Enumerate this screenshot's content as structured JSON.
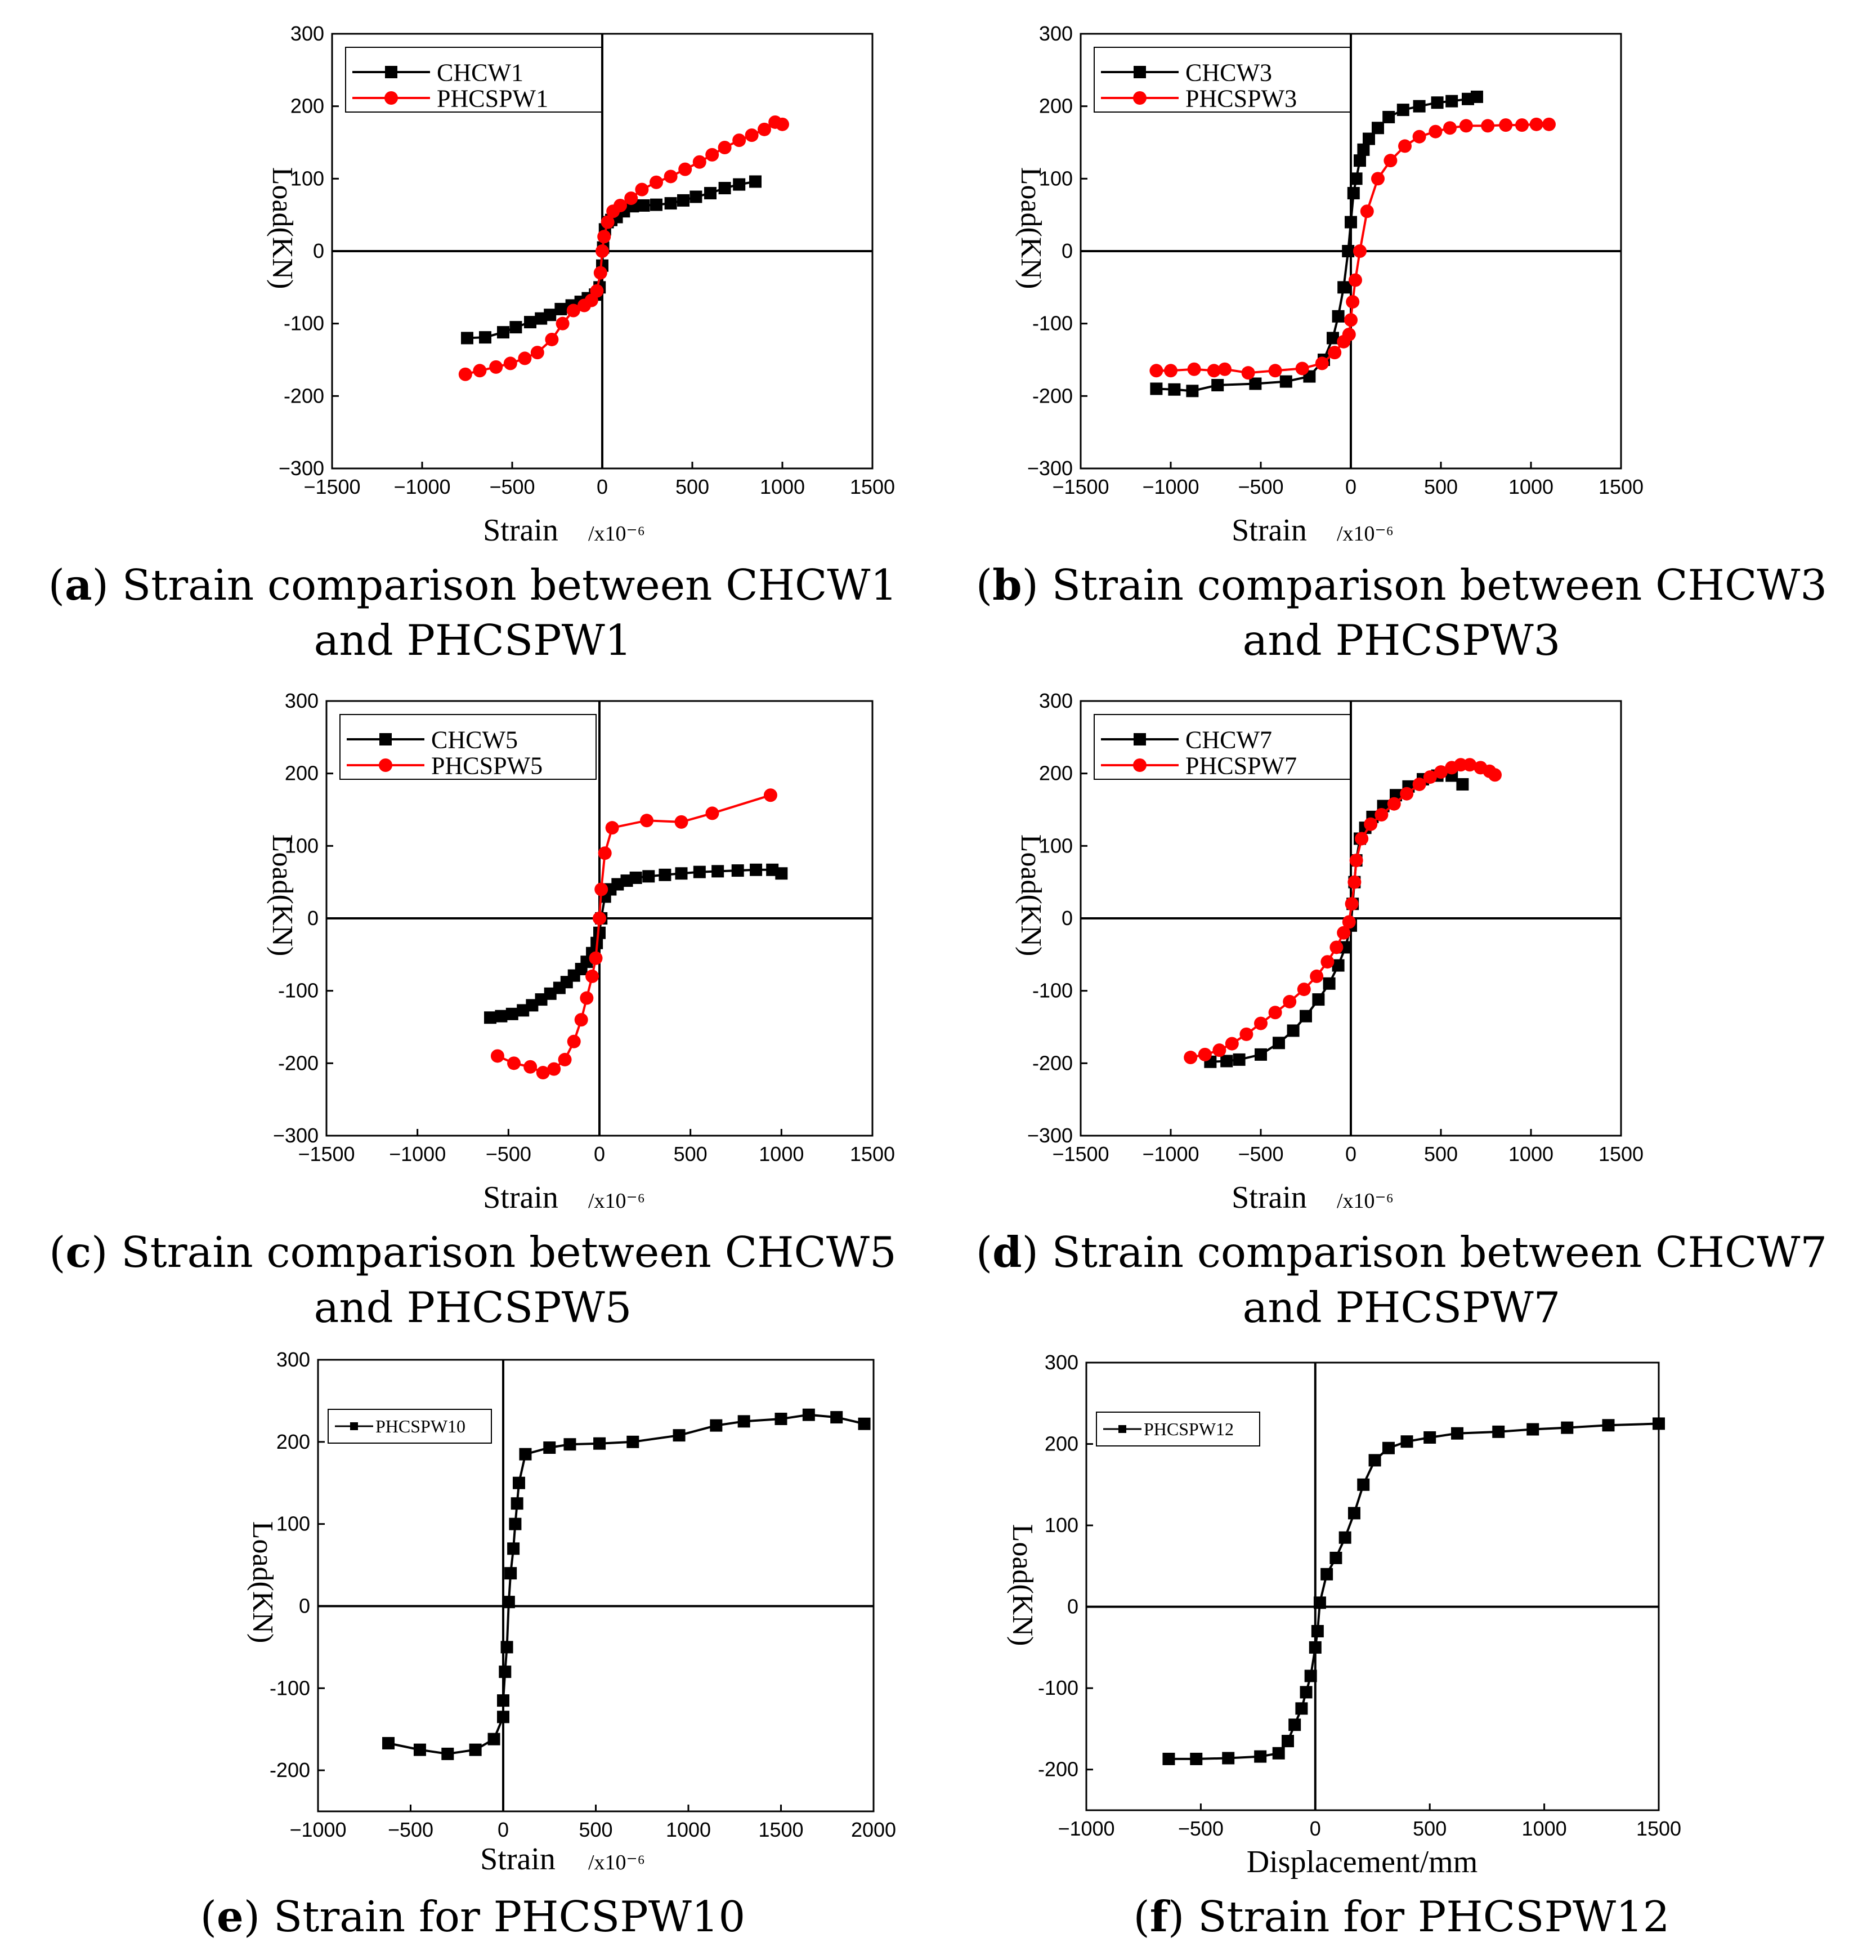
{
  "chart_data": [
    {
      "type": "line",
      "panel": "a",
      "caption_prefix": "(",
      "caption_letter": "a",
      "caption_text": ") Strain comparison between CHCW1 and PHCSPW1",
      "xlabel": "Strain",
      "xunit": "/x10⁻⁶",
      "ylabel": "Load(KN)",
      "xlim": [
        -1500,
        1500
      ],
      "ylim": [
        -300,
        300
      ],
      "xticks": [
        "−1500",
        "−1000",
        "−500",
        "0",
        "500",
        "1000",
        "1500"
      ],
      "yticks": [
        "300",
        "200",
        "100",
        "0",
        "-100",
        "-200",
        "−300"
      ],
      "legend": "top-left",
      "series": [
        {
          "name": "CHCW1",
          "color": "#000000",
          "marker": "square",
          "x": [
            -750,
            -650,
            -550,
            -480,
            -400,
            -340,
            -290,
            -230,
            -170,
            -120,
            -80,
            -40,
            -15,
            0,
            5,
            15,
            30,
            50,
            80,
            120,
            170,
            230,
            300,
            380,
            450,
            520,
            600,
            680,
            760,
            850
          ],
          "y": [
            -120,
            -119,
            -112,
            -105,
            -98,
            -93,
            -88,
            -80,
            -75,
            -70,
            -65,
            -60,
            -50,
            -20,
            5,
            30,
            40,
            43,
            47,
            55,
            62,
            63,
            64,
            66,
            70,
            75,
            80,
            87,
            92,
            96
          ]
        },
        {
          "name": "PHCSPW1",
          "color": "#ff0000",
          "marker": "circle",
          "x": [
            -760,
            -680,
            -590,
            -510,
            -430,
            -360,
            -280,
            -220,
            -160,
            -100,
            -60,
            -30,
            -10,
            0,
            10,
            30,
            60,
            100,
            160,
            220,
            300,
            380,
            460,
            540,
            610,
            680,
            760,
            830,
            900,
            960,
            1000
          ],
          "y": [
            -170,
            -165,
            -160,
            -155,
            -148,
            -140,
            -122,
            -100,
            -82,
            -75,
            -68,
            -55,
            -30,
            0,
            20,
            40,
            55,
            63,
            73,
            85,
            95,
            103,
            113,
            123,
            133,
            143,
            153,
            160,
            168,
            178,
            175
          ]
        }
      ]
    },
    {
      "type": "line",
      "panel": "b",
      "caption_prefix": "(",
      "caption_letter": "b",
      "caption_text": ") Strain comparison between CHCW3 and PHCSPW3",
      "xlabel": "Strain",
      "xunit": "/x10⁻⁶",
      "ylabel": "Load(KN)",
      "xlim": [
        -1500,
        1500
      ],
      "ylim": [
        -300,
        300
      ],
      "xticks": [
        "−1500",
        "−1000",
        "−500",
        "0",
        "500",
        "1000",
        "1500"
      ],
      "yticks": [
        "300",
        "200",
        "100",
        "0",
        "-100",
        "-200",
        "−300"
      ],
      "legend": "top-left",
      "series": [
        {
          "name": "CHCW3",
          "color": "#000000",
          "marker": "square",
          "x": [
            -1080,
            -980,
            -880,
            -740,
            -530,
            -360,
            -230,
            -150,
            -100,
            -70,
            -40,
            -15,
            0,
            15,
            30,
            50,
            70,
            100,
            150,
            210,
            290,
            380,
            480,
            560,
            650,
            700
          ],
          "y": [
            -190,
            -191,
            -193,
            -185,
            -183,
            -180,
            -173,
            -150,
            -120,
            -90,
            -50,
            0,
            40,
            80,
            100,
            125,
            140,
            155,
            170,
            185,
            195,
            200,
            205,
            207,
            210,
            213
          ]
        },
        {
          "name": "PHCSPW3",
          "color": "#ff0000",
          "marker": "circle",
          "x": [
            -1080,
            -1000,
            -870,
            -760,
            -700,
            -570,
            -420,
            -270,
            -160,
            -90,
            -40,
            -10,
            0,
            10,
            25,
            50,
            90,
            150,
            220,
            300,
            380,
            470,
            550,
            640,
            760,
            860,
            950,
            1030,
            1100
          ],
          "y": [
            -165,
            -165,
            -163,
            -165,
            -163,
            -168,
            -165,
            -162,
            -155,
            -140,
            -125,
            -115,
            -95,
            -70,
            -40,
            0,
            55,
            100,
            125,
            145,
            158,
            165,
            170,
            173,
            173,
            174,
            174,
            175,
            175
          ]
        }
      ]
    },
    {
      "type": "line",
      "panel": "c",
      "caption_prefix": "(",
      "caption_letter": "c",
      "caption_text": ") Strain comparison between CHCW5 and PHCSPW5",
      "xlabel": "Strain",
      "xunit": "/x10⁻⁶",
      "ylabel": "Load(KN)",
      "xlim": [
        -1500,
        1500
      ],
      "ylim": [
        -300,
        300
      ],
      "xticks": [
        "−1500",
        "−1000",
        "−500",
        "0",
        "500",
        "1000",
        "1500"
      ],
      "yticks": [
        "300",
        "200",
        "100",
        "0",
        "-100",
        "-200",
        "−300"
      ],
      "legend": "top-left",
      "series": [
        {
          "name": "CHCW5",
          "color": "#000000",
          "marker": "square",
          "x": [
            -600,
            -540,
            -480,
            -420,
            -370,
            -320,
            -270,
            -220,
            -180,
            -140,
            -100,
            -70,
            -40,
            -15,
            0,
            10,
            30,
            60,
            100,
            150,
            200,
            270,
            360,
            450,
            550,
            650,
            760,
            860,
            950,
            1000
          ],
          "y": [
            -137,
            -135,
            -132,
            -127,
            -120,
            -112,
            -104,
            -96,
            -88,
            -79,
            -70,
            -60,
            -48,
            -34,
            -20,
            0,
            30,
            40,
            47,
            52,
            56,
            58,
            60,
            62,
            64,
            65,
            66,
            67,
            67,
            62
          ]
        },
        {
          "name": "PHCSPW5",
          "color": "#ff0000",
          "marker": "circle",
          "x": [
            -560,
            -470,
            -380,
            -310,
            -250,
            -190,
            -140,
            -100,
            -70,
            -40,
            -20,
            0,
            10,
            30,
            70,
            260,
            450,
            620,
            940
          ],
          "y": [
            -190,
            -200,
            -205,
            -213,
            -208,
            -195,
            -170,
            -140,
            -110,
            -80,
            -55,
            0,
            40,
            90,
            125,
            135,
            133,
            145,
            170
          ]
        }
      ]
    },
    {
      "type": "line",
      "panel": "d",
      "caption_prefix": "(",
      "caption_letter": "d",
      "caption_text": ") Strain comparison between CHCW7 and PHCSPW7",
      "xlabel": "Strain",
      "xunit": "/x10⁻⁶",
      "ylabel": "Load(KN)",
      "xlim": [
        -1500,
        1500
      ],
      "ylim": [
        -300,
        300
      ],
      "xticks": [
        "−1500",
        "−1000",
        "−500",
        "0",
        "500",
        "1000",
        "1500"
      ],
      "yticks": [
        "300",
        "200",
        "100",
        "0",
        "-100",
        "-200",
        "−300"
      ],
      "legend": "top-left",
      "series": [
        {
          "name": "CHCW7",
          "color": "#000000",
          "marker": "square",
          "x": [
            -780,
            -690,
            -620,
            -500,
            -400,
            -320,
            -250,
            -180,
            -120,
            -70,
            -30,
            0,
            10,
            20,
            30,
            50,
            80,
            120,
            180,
            250,
            320,
            400,
            480,
            560,
            620
          ],
          "y": [
            -198,
            -197,
            -195,
            -188,
            -172,
            -155,
            -135,
            -112,
            -90,
            -65,
            -40,
            -10,
            20,
            50,
            80,
            110,
            125,
            140,
            155,
            170,
            182,
            192,
            197,
            197,
            185
          ]
        },
        {
          "name": "PHCSPW7",
          "color": "#ff0000",
          "marker": "circle",
          "x": [
            -890,
            -810,
            -730,
            -660,
            -580,
            -500,
            -420,
            -340,
            -260,
            -190,
            -130,
            -80,
            -40,
            -10,
            5,
            20,
            30,
            60,
            110,
            170,
            240,
            310,
            380,
            440,
            500,
            560,
            610,
            660,
            720,
            770,
            800
          ],
          "y": [
            -192,
            -188,
            -182,
            -173,
            -160,
            -145,
            -130,
            -115,
            -98,
            -80,
            -60,
            -40,
            -20,
            -5,
            20,
            50,
            80,
            110,
            130,
            143,
            158,
            172,
            185,
            195,
            202,
            208,
            212,
            212,
            208,
            203,
            198
          ]
        }
      ]
    },
    {
      "type": "line",
      "panel": "e",
      "caption_prefix": "(",
      "caption_letter": "e",
      "caption_text": ") Strain for PHCSPW10",
      "xlabel": "Strain",
      "xunit": "/x10⁻⁶",
      "ylabel": "Load(KN)",
      "xlim": [
        -1000,
        2000
      ],
      "ylim": [
        -250,
        300
      ],
      "xticks": [
        "−1000",
        "−500",
        "0",
        "500",
        "1000",
        "1500",
        "2000"
      ],
      "yticks": [
        "300",
        "200",
        "100",
        "0",
        "-100",
        "-200"
      ],
      "legend": "top-left",
      "series": [
        {
          "name": "PHCSPW10",
          "color": "#000000",
          "marker": "square",
          "x": [
            -620,
            -450,
            -300,
            -150,
            -50,
            0,
            0,
            10,
            20,
            30,
            40,
            55,
            65,
            75,
            85,
            120,
            250,
            360,
            520,
            700,
            950,
            1150,
            1300,
            1500,
            1650,
            1800,
            1950
          ],
          "y": [
            -167,
            -175,
            -180,
            -175,
            -162,
            -135,
            -115,
            -80,
            -50,
            5,
            40,
            70,
            100,
            125,
            150,
            185,
            193,
            197,
            198,
            200,
            208,
            220,
            225,
            228,
            233,
            230,
            222
          ]
        }
      ]
    },
    {
      "type": "line",
      "panel": "f",
      "caption_prefix": "(",
      "caption_letter": "f",
      "caption_text": ") Strain for PHCSPW12",
      "xlabel": "Displacement/mm",
      "xunit": "",
      "ylabel": "Load(KN)",
      "xlim": [
        -1000,
        1500
      ],
      "ylim": [
        -250,
        300
      ],
      "xticks": [
        "−1000",
        "−500",
        "0",
        "500",
        "1000",
        "1500"
      ],
      "yticks": [
        "300",
        "200",
        "100",
        "0",
        "-100",
        "-200"
      ],
      "legend": "top-left",
      "series": [
        {
          "name": "PHCSPW12",
          "color": "#000000",
          "marker": "square",
          "x": [
            -640,
            -520,
            -380,
            -240,
            -160,
            -120,
            -90,
            -60,
            -40,
            -20,
            0,
            10,
            20,
            50,
            90,
            130,
            170,
            210,
            260,
            320,
            400,
            500,
            620,
            800,
            950,
            1100,
            1280,
            1500
          ],
          "y": [
            -187,
            -187,
            -186,
            -184,
            -180,
            -165,
            -145,
            -125,
            -105,
            -85,
            -50,
            -30,
            5,
            40,
            60,
            85,
            115,
            150,
            180,
            195,
            203,
            208,
            213,
            215,
            218,
            220,
            223,
            225
          ]
        }
      ]
    }
  ]
}
